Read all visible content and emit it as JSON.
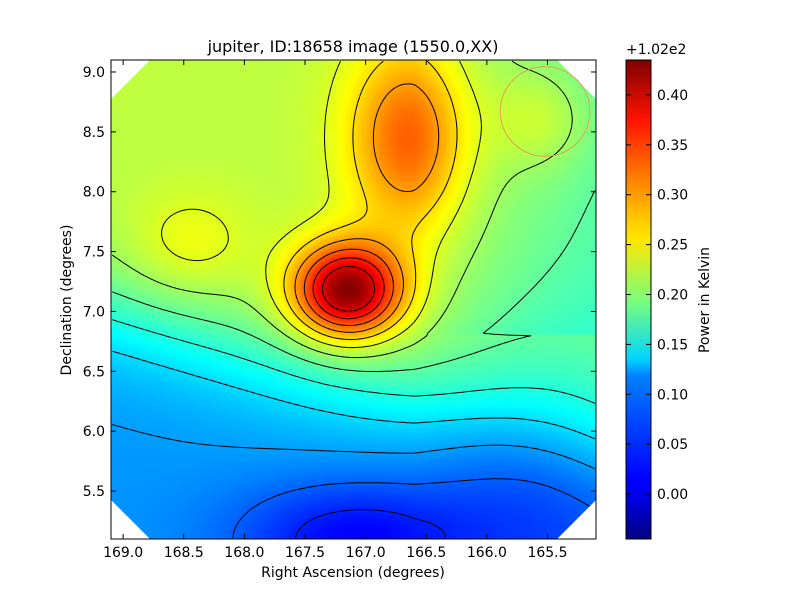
{
  "chart_data": {
    "type": "heatmap",
    "title": "jupiter, ID:18658 image (1550.0,XX)",
    "xlabel": "Right Ascension (degrees)",
    "ylabel": "Declination (degrees)",
    "xlim": [
      169.1,
      165.1
    ],
    "ylim": [
      5.1,
      9.1
    ],
    "x_ticks": [
      "169.0",
      "168.5",
      "168.0",
      "167.5",
      "167.0",
      "166.5",
      "166.0",
      "165.5"
    ],
    "y_ticks": [
      "5.5",
      "6.0",
      "6.5",
      "7.0",
      "7.5",
      "8.0",
      "8.5",
      "9.0"
    ],
    "colorbar": {
      "label": "Power in Kelvin",
      "offset_text": "+1.02e2",
      "range": [
        -0.045,
        0.435
      ],
      "ticks": [
        "0.00",
        "0.05",
        "0.10",
        "0.15",
        "0.20",
        "0.25",
        "0.30",
        "0.35",
        "0.40"
      ],
      "colormap": "jet"
    },
    "field_features": [
      {
        "label": "peak",
        "ra": 167.15,
        "dec": 7.17,
        "value": 0.43
      },
      {
        "label": "secondary maximum",
        "ra": 166.65,
        "dec": 8.4,
        "value": 0.33
      },
      {
        "label": "minimum",
        "ra": 167.1,
        "dec": 5.15,
        "value": -0.04
      },
      {
        "label": "blob",
        "ra": 168.45,
        "dec": 7.55,
        "value": 0.26
      },
      {
        "label": "blob",
        "ra": 165.55,
        "dec": 8.6,
        "value": 0.265
      }
    ],
    "beam_circle": {
      "ra": 165.52,
      "dec": 8.67,
      "radius_deg": 0.37
    },
    "contours": true,
    "grid": false
  }
}
